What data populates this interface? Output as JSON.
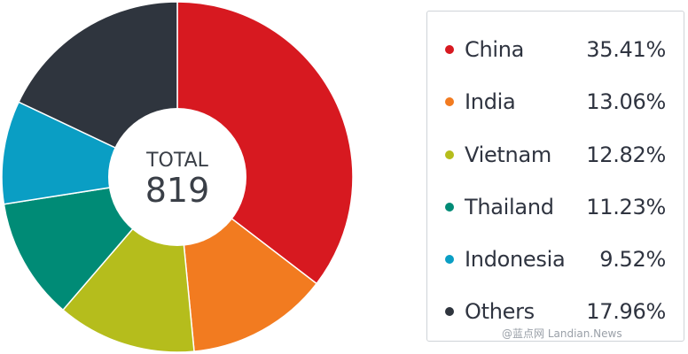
{
  "chart_data": {
    "type": "pie",
    "center_label": "TOTAL",
    "center_value": "819",
    "slices": [
      {
        "name": "China",
        "value": 35.41,
        "label": "35.41%",
        "color": "#d71920"
      },
      {
        "name": "India",
        "value": 13.06,
        "label": "13.06%",
        "color": "#f27b20"
      },
      {
        "name": "Vietnam",
        "value": 12.82,
        "label": "12.82%",
        "color": "#b5bd1c"
      },
      {
        "name": "Thailand",
        "value": 11.23,
        "label": "11.23%",
        "color": "#008b76"
      },
      {
        "name": "Indonesia",
        "value": 9.52,
        "label": "9.52%",
        "color": "#0a9ec4"
      },
      {
        "name": "Others",
        "value": 17.96,
        "label": "17.96%",
        "color": "#2f353e"
      }
    ]
  },
  "watermark": "@蓝点网 Landian.News"
}
